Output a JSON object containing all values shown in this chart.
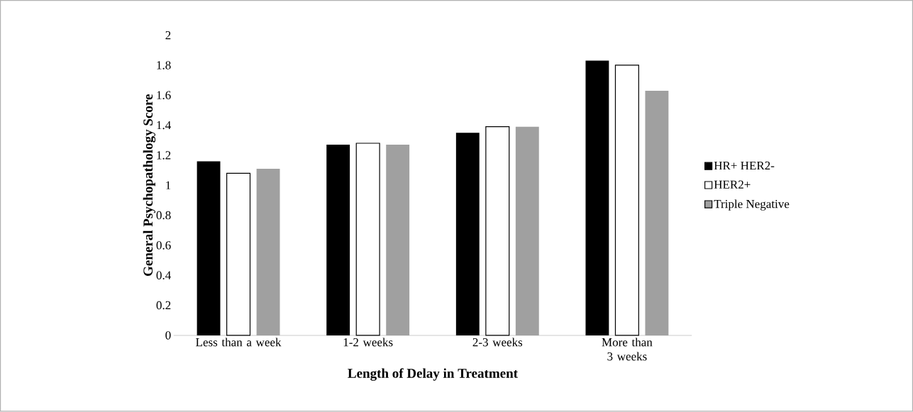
{
  "chart_data": {
    "type": "bar",
    "xlabel": "Length of Delay in Treatment",
    "ylabel": "General Psychopathology Score",
    "categories": [
      "Less than a week",
      "1-2 weeks",
      "2-3 weeks",
      "More than 3 weeks"
    ],
    "series": [
      {
        "name": "HR+ HER2-",
        "color": "#000000",
        "values": [
          1.16,
          1.27,
          1.35,
          1.83
        ]
      },
      {
        "name": "HER2+",
        "color": "#ffffff",
        "values": [
          1.08,
          1.28,
          1.39,
          1.8
        ]
      },
      {
        "name": "Triple Negative",
        "color": "#a0a0a0",
        "values": [
          1.11,
          1.27,
          1.39,
          1.63
        ]
      }
    ],
    "ylim": [
      0,
      2
    ],
    "yticks": [
      0,
      0.2,
      0.4,
      0.6,
      0.8,
      1,
      1.2,
      1.4,
      1.6,
      1.8,
      2
    ],
    "legend": "right"
  }
}
